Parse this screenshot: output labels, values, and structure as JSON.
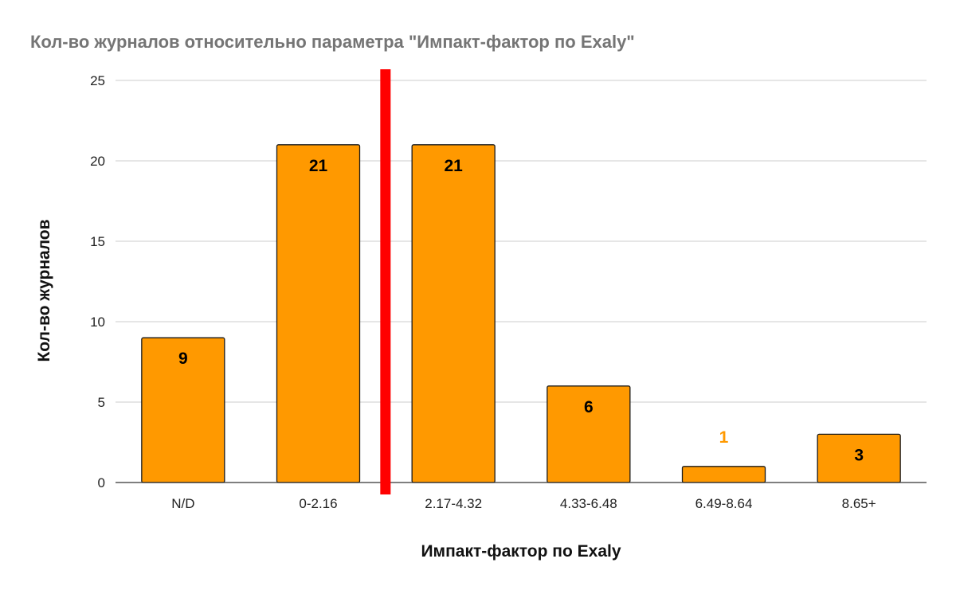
{
  "chart_data": {
    "type": "bar",
    "title": "Кол-во журналов относительно параметра \"Импакт-фактор по Exaly\"",
    "xlabel": "Импакт-фактор по Exaly",
    "ylabel": "Кол-во журналов",
    "categories": [
      "N/D",
      "0-2.16",
      "2.17-4.32",
      "4.33-6.48",
      "6.49-8.64",
      "8.65+"
    ],
    "series": [
      {
        "values": [
          9,
          21,
          21,
          6,
          1,
          3
        ]
      }
    ],
    "ylim": [
      0,
      25
    ],
    "yticks": [
      0,
      5,
      10,
      15,
      20,
      25
    ],
    "grid": true,
    "legend": "none",
    "colors": {
      "bar": "#ff9900",
      "bar_stroke": "#1a1a1a",
      "label_inside": "#000000",
      "label_outside": "#ff9900",
      "marker": "#ff0000",
      "grid": "#cccccc",
      "title": "#757575"
    },
    "annotations": [
      {
        "type": "vertical-marker",
        "position": "between 0-2.16 and 2.17-4.32",
        "color": "#ff0000"
      }
    ]
  }
}
